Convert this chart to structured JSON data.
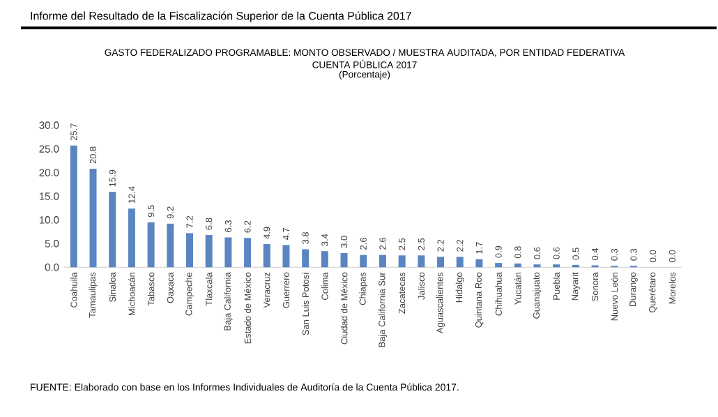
{
  "chart_data": {
    "type": "bar",
    "title": "GASTO FEDERALIZADO PROGRAMABLE: MONTO OBSERVADO / MUESTRA AUDITADA, POR ENTIDAD FEDERATIVA",
    "subtitle": "CUENTA PÚBLICA 2017",
    "annotations": [
      "Informe del Resultado de la Fiscalización Superior de la Cuenta Pública 2017",
      "(Porcentaje)",
      "FUENTE: Elaborado con base en los Informes Individuales de Auditoría de la Cuenta Pública 2017."
    ],
    "categories": [
      "Coahuila",
      "Tamaulipas",
      "Sinaloa",
      "Michoacán",
      "Tabasco",
      "Oaxaca",
      "Campeche",
      "Tlaxcala",
      "Baja California",
      "Estado de México",
      "Veracruz",
      "Guerrero",
      "San Luis Potosí",
      "Colima",
      "Ciudad de México",
      "Chiapas",
      "Baja California Sur",
      "Zacatecas",
      "Jalisco",
      "Aguascalientes",
      "Hidalgo",
      "Quintana Roo",
      "Chihuahua",
      "Yucatán",
      "Guanajuato",
      "Puebla",
      "Nayarit",
      "Sonora",
      "Nuevo León",
      "Durango",
      "Querétaro",
      "Morelos"
    ],
    "values": [
      25.7,
      20.8,
      15.9,
      12.4,
      9.5,
      9.2,
      7.2,
      6.8,
      6.3,
      6.2,
      4.9,
      4.7,
      3.8,
      3.4,
      3.0,
      2.6,
      2.6,
      2.5,
      2.5,
      2.2,
      2.2,
      1.7,
      0.9,
      0.8,
      0.6,
      0.6,
      0.5,
      0.4,
      0.3,
      0.3,
      0.0,
      0.0
    ],
    "color": "#5b85c0",
    "value_labels": [
      "25.7",
      "20.8",
      "15.9",
      "12.4",
      "9.5",
      "9.2",
      "7.2",
      "6.8",
      "6.3",
      "6.2",
      "4.9",
      "4.7",
      "3.8",
      "3.4",
      "3.0",
      "2.6",
      "2.6",
      "2.5",
      "2.5",
      "2.2",
      "2.2",
      "1.7",
      "0.9",
      "0.8",
      "0.6",
      "0.6",
      "0.5",
      "0.4",
      "0.3",
      "0.3",
      "0.0",
      "0.0"
    ],
    "ylim": [
      0,
      30
    ],
    "yticks": [
      {
        "value": 0,
        "label": "0.0"
      },
      {
        "value": 5,
        "label": "5.0"
      },
      {
        "value": 10,
        "label": "10.0"
      },
      {
        "value": 15,
        "label": "15.0"
      },
      {
        "value": 20,
        "label": "20.0"
      },
      {
        "value": 25,
        "label": "25.0"
      },
      {
        "value": 30,
        "label": "30.0"
      }
    ]
  }
}
